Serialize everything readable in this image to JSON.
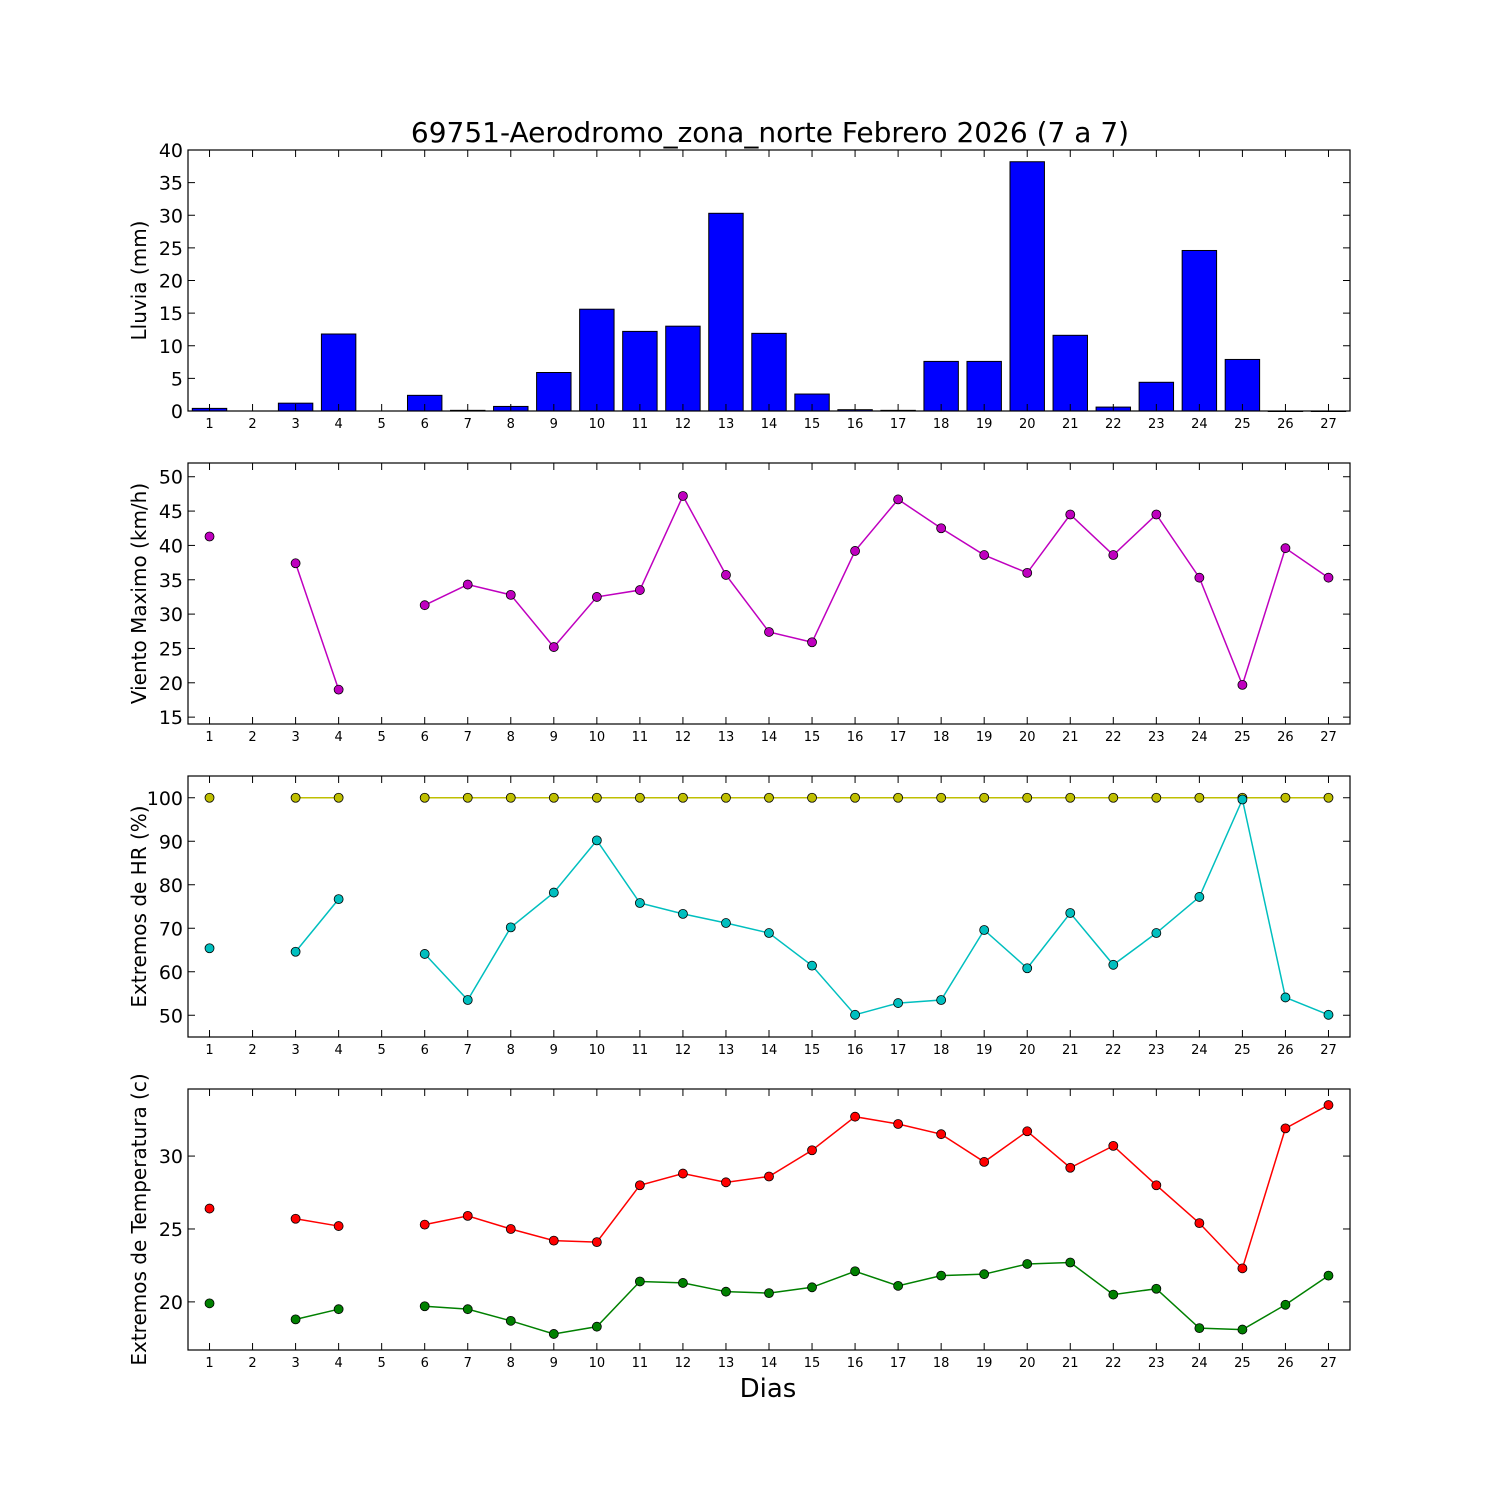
{
  "title": "69751-Aerodromo_zona_norte Febrero 2026  (7 a 7)",
  "xlabel": "Dias",
  "chart_data": [
    {
      "type": "bar",
      "ylabel": "Lluvia (mm)",
      "ylim": [
        0,
        40
      ],
      "yticks": [
        0,
        5,
        10,
        15,
        20,
        25,
        30,
        35,
        40
      ],
      "x": [
        1,
        2,
        3,
        4,
        5,
        6,
        7,
        8,
        9,
        10,
        11,
        12,
        13,
        14,
        15,
        16,
        17,
        18,
        19,
        20,
        21,
        22,
        23,
        24,
        25,
        26,
        27
      ],
      "series": [
        {
          "color": "#0000ff",
          "values": [
            0.4,
            null,
            1.2,
            11.8,
            null,
            2.4,
            0.1,
            0.7,
            5.9,
            15.6,
            12.2,
            13.0,
            30.3,
            11.9,
            2.6,
            0.2,
            0.1,
            7.6,
            7.6,
            38.2,
            11.6,
            0.6,
            4.4,
            24.6,
            7.9,
            0.0,
            0.0
          ]
        }
      ]
    },
    {
      "type": "line",
      "ylabel": "Viento Maximo (km/h)",
      "ylim": [
        14,
        52
      ],
      "yticks": [
        15,
        20,
        25,
        30,
        35,
        40,
        45,
        50
      ],
      "x": [
        1,
        2,
        3,
        4,
        5,
        6,
        7,
        8,
        9,
        10,
        11,
        12,
        13,
        14,
        15,
        16,
        17,
        18,
        19,
        20,
        21,
        22,
        23,
        24,
        25,
        26,
        27
      ],
      "series": [
        {
          "color": "#bf00bf",
          "values": [
            41.3,
            null,
            37.4,
            19.0,
            null,
            31.3,
            34.3,
            32.8,
            25.2,
            32.5,
            33.5,
            47.2,
            35.7,
            27.4,
            25.9,
            39.2,
            46.7,
            42.5,
            38.6,
            36.0,
            44.5,
            38.6,
            44.5,
            35.3,
            19.7,
            39.6,
            35.3
          ]
        }
      ]
    },
    {
      "type": "line",
      "ylabel": "Extremos de HR (%)",
      "ylim": [
        45,
        105
      ],
      "yticks": [
        50,
        60,
        70,
        80,
        90,
        100
      ],
      "x": [
        1,
        2,
        3,
        4,
        5,
        6,
        7,
        8,
        9,
        10,
        11,
        12,
        13,
        14,
        15,
        16,
        17,
        18,
        19,
        20,
        21,
        22,
        23,
        24,
        25,
        26,
        27
      ],
      "series": [
        {
          "color": "#bfbf00",
          "values": [
            100,
            null,
            100,
            100,
            null,
            100,
            100,
            100,
            100,
            100,
            100,
            100,
            100,
            100,
            100,
            100,
            100,
            100,
            100,
            100,
            100,
            100,
            100,
            100,
            100,
            100,
            100
          ]
        },
        {
          "color": "#00bfbf",
          "values": [
            65.4,
            null,
            64.6,
            76.7,
            null,
            64.1,
            53.5,
            70.2,
            78.2,
            90.2,
            75.8,
            73.3,
            71.2,
            68.9,
            61.4,
            50.1,
            52.8,
            53.5,
            69.6,
            60.8,
            73.5,
            61.6,
            68.9,
            77.2,
            99.6,
            54.1,
            50.1
          ]
        }
      ]
    },
    {
      "type": "line",
      "ylabel": "Extremos de Temperatura (c)",
      "ylim": [
        16.7,
        34.6
      ],
      "yticks": [
        20,
        25,
        30
      ],
      "x": [
        1,
        2,
        3,
        4,
        5,
        6,
        7,
        8,
        9,
        10,
        11,
        12,
        13,
        14,
        15,
        16,
        17,
        18,
        19,
        20,
        21,
        22,
        23,
        24,
        25,
        26,
        27
      ],
      "series": [
        {
          "color": "#ff0000",
          "values": [
            26.4,
            null,
            25.7,
            25.2,
            null,
            25.3,
            25.9,
            25.0,
            24.2,
            24.1,
            28.0,
            28.8,
            28.2,
            28.6,
            30.4,
            32.7,
            32.2,
            31.5,
            29.6,
            31.7,
            29.2,
            30.7,
            28.0,
            25.4,
            22.3,
            31.9,
            33.5
          ]
        },
        {
          "color": "#008000",
          "values": [
            19.9,
            null,
            18.8,
            19.5,
            null,
            19.7,
            19.5,
            18.7,
            17.8,
            18.3,
            21.4,
            21.3,
            20.7,
            20.6,
            21.0,
            22.1,
            21.1,
            21.8,
            21.9,
            22.6,
            22.7,
            20.5,
            20.9,
            18.2,
            18.1,
            19.8,
            21.8
          ]
        }
      ]
    }
  ]
}
